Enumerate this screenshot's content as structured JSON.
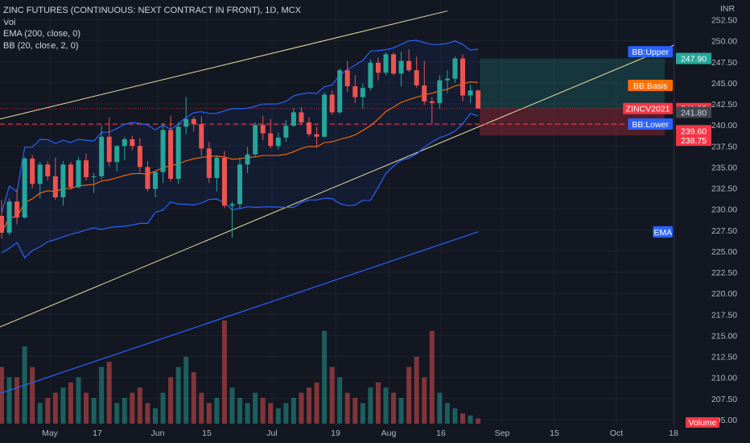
{
  "legend": {
    "symbol": "ZINC FUTURES (CONTINUOUS: NEXT CONTRACT IN FRONT), 1D, MCX",
    "vol": "Vol",
    "ema": "EMA (200, close, 0)",
    "bb": "BB (20, close, 2, 0)"
  },
  "currency": "INR",
  "colors": {
    "background": "#131722",
    "up": "#26a69a",
    "down": "#ef5350",
    "bb_bands": "#2962ff",
    "bb_basis": "#ff6d00",
    "ema": "#2962ff",
    "channel": "#e8dfa0",
    "dashed_level": "#f23645",
    "target_zone": "#26a69a",
    "stop_zone": "#f23645"
  },
  "chart_data": {
    "type": "candlestick",
    "title": "ZINC FUTURES (CONTINUOUS: NEXT CONTRACT IN FRONT), 1D, MCX",
    "ylim": [
      203.5,
      253.5
    ],
    "y_ticks": [
      "252.50",
      "250.00",
      "247.50",
      "245.00",
      "242.50",
      "240.00",
      "237.50",
      "235.00",
      "232.50",
      "230.00",
      "227.50",
      "225.00",
      "222.50",
      "220.00",
      "217.50",
      "215.00",
      "212.50",
      "210.00",
      "207.50",
      "205.00"
    ],
    "x_ticks": [
      "May",
      "17",
      "Jun",
      "15",
      "Jul",
      "19",
      "Aug",
      "16",
      "Sep",
      "15",
      "Oct",
      "18"
    ],
    "price_tags": [
      {
        "label": "INR"
      },
      {
        "label": "BB:Upper",
        "value": 248.7
      },
      {
        "label": "",
        "value": "247.90",
        "kind": "target"
      },
      {
        "label": "BB:Basis",
        "value": 244.7
      },
      {
        "label": "ZINCV2021",
        "value": "241.95",
        "kind": "last"
      },
      {
        "label": "",
        "value": "241.80",
        "kind": "plain"
      },
      {
        "label": "BB:Lower",
        "value": 240.3
      },
      {
        "label": "",
        "value": "239.60",
        "kind": "stop"
      },
      {
        "label": "",
        "value": "238.75",
        "kind": "stop"
      },
      {
        "label": "EMA",
        "value": 227.3
      },
      {
        "label": "Volume",
        "kind": "volume"
      }
    ],
    "dashed_level": 240.1,
    "last_price": 241.95,
    "position": {
      "entry": 241.95,
      "target": 247.9,
      "stop": 238.75
    },
    "candles": [
      {
        "o": 229.2,
        "h": 231.1,
        "l": 226.5,
        "c": 227.2,
        "v": 0.55
      },
      {
        "o": 227.2,
        "h": 231.3,
        "l": 226.9,
        "c": 230.9,
        "v": 0.45
      },
      {
        "o": 230.9,
        "h": 232.4,
        "l": 228.2,
        "c": 229.0,
        "v": 0.45
      },
      {
        "o": 229.0,
        "h": 236.2,
        "l": 228.9,
        "c": 236.0,
        "v": 0.75
      },
      {
        "o": 236.0,
        "h": 236.4,
        "l": 232.5,
        "c": 233.0,
        "v": 0.55
      },
      {
        "o": 233.0,
        "h": 235.6,
        "l": 231.3,
        "c": 235.3,
        "v": 0.2
      },
      {
        "o": 235.3,
        "h": 235.7,
        "l": 233.4,
        "c": 233.9,
        "v": 0.25
      },
      {
        "o": 233.9,
        "h": 236.1,
        "l": 231.1,
        "c": 231.4,
        "v": 0.3
      },
      {
        "o": 231.4,
        "h": 235.7,
        "l": 230.4,
        "c": 235.3,
        "v": 0.35
      },
      {
        "o": 235.3,
        "h": 235.6,
        "l": 232.3,
        "c": 232.6,
        "v": 0.4
      },
      {
        "o": 232.6,
        "h": 236.2,
        "l": 232.5,
        "c": 235.8,
        "v": 0.45
      },
      {
        "o": 235.8,
        "h": 236.6,
        "l": 233.4,
        "c": 233.8,
        "v": 0.3
      },
      {
        "o": 233.8,
        "h": 234.3,
        "l": 231.9,
        "c": 233.9,
        "v": 0.25
      },
      {
        "o": 233.9,
        "h": 239.9,
        "l": 233.5,
        "c": 238.6,
        "v": 0.55
      },
      {
        "o": 238.6,
        "h": 240.9,
        "l": 235.1,
        "c": 235.6,
        "v": 0.6
      },
      {
        "o": 235.6,
        "h": 237.6,
        "l": 234.5,
        "c": 237.5,
        "v": 0.2
      },
      {
        "o": 237.5,
        "h": 238.6,
        "l": 235.8,
        "c": 238.3,
        "v": 0.25
      },
      {
        "o": 238.3,
        "h": 238.7,
        "l": 237.0,
        "c": 237.5,
        "v": 0.3
      },
      {
        "o": 237.5,
        "h": 238.4,
        "l": 234.4,
        "c": 235.0,
        "v": 0.35
      },
      {
        "o": 235.0,
        "h": 235.7,
        "l": 232.1,
        "c": 232.4,
        "v": 0.2
      },
      {
        "o": 232.4,
        "h": 234.5,
        "l": 231.4,
        "c": 234.4,
        "v": 0.15
      },
      {
        "o": 234.4,
        "h": 240.2,
        "l": 233.1,
        "c": 239.4,
        "v": 0.3
      },
      {
        "o": 239.4,
        "h": 241.1,
        "l": 233.3,
        "c": 233.6,
        "v": 0.45
      },
      {
        "o": 233.6,
        "h": 240.3,
        "l": 233.0,
        "c": 239.8,
        "v": 0.55
      },
      {
        "o": 239.8,
        "h": 243.3,
        "l": 238.9,
        "c": 240.7,
        "v": 0.65
      },
      {
        "o": 240.7,
        "h": 241.0,
        "l": 239.2,
        "c": 240.1,
        "v": 0.5
      },
      {
        "o": 240.1,
        "h": 241.0,
        "l": 236.3,
        "c": 237.2,
        "v": 0.3
      },
      {
        "o": 237.2,
        "h": 238.0,
        "l": 233.1,
        "c": 233.7,
        "v": 0.2
      },
      {
        "o": 233.7,
        "h": 236.4,
        "l": 232.1,
        "c": 236.1,
        "v": 0.25
      },
      {
        "o": 236.1,
        "h": 236.9,
        "l": 230.1,
        "c": 230.4,
        "v": 1.0
      },
      {
        "o": 230.4,
        "h": 230.9,
        "l": 226.6,
        "c": 230.6,
        "v": 0.35
      },
      {
        "o": 230.6,
        "h": 236.1,
        "l": 230.1,
        "c": 235.3,
        "v": 0.25
      },
      {
        "o": 235.3,
        "h": 237.4,
        "l": 234.3,
        "c": 236.5,
        "v": 0.2
      },
      {
        "o": 236.5,
        "h": 240.3,
        "l": 236.2,
        "c": 240.0,
        "v": 0.3
      },
      {
        "o": 240.0,
        "h": 241.1,
        "l": 238.2,
        "c": 239.0,
        "v": 0.25
      },
      {
        "o": 239.0,
        "h": 240.7,
        "l": 237.2,
        "c": 237.5,
        "v": 0.2
      },
      {
        "o": 237.5,
        "h": 239.1,
        "l": 237.1,
        "c": 238.5,
        "v": 0.15
      },
      {
        "o": 238.5,
        "h": 240.6,
        "l": 238.0,
        "c": 239.9,
        "v": 0.2
      },
      {
        "o": 239.9,
        "h": 242.0,
        "l": 239.8,
        "c": 241.5,
        "v": 0.25
      },
      {
        "o": 241.5,
        "h": 242.1,
        "l": 240.0,
        "c": 240.3,
        "v": 0.3
      },
      {
        "o": 240.3,
        "h": 240.9,
        "l": 238.6,
        "c": 238.9,
        "v": 0.35
      },
      {
        "o": 238.9,
        "h": 239.8,
        "l": 237.3,
        "c": 238.6,
        "v": 0.4
      },
      {
        "o": 238.6,
        "h": 243.9,
        "l": 238.5,
        "c": 243.6,
        "v": 0.9
      },
      {
        "o": 243.6,
        "h": 244.1,
        "l": 241.2,
        "c": 241.5,
        "v": 0.55
      },
      {
        "o": 241.5,
        "h": 246.7,
        "l": 241.3,
        "c": 246.5,
        "v": 0.45
      },
      {
        "o": 246.5,
        "h": 247.6,
        "l": 243.9,
        "c": 244.6,
        "v": 0.3
      },
      {
        "o": 244.6,
        "h": 245.9,
        "l": 242.6,
        "c": 243.3,
        "v": 0.25
      },
      {
        "o": 243.3,
        "h": 244.9,
        "l": 241.9,
        "c": 244.4,
        "v": 0.2
      },
      {
        "o": 244.4,
        "h": 247.8,
        "l": 244.1,
        "c": 247.4,
        "v": 0.35
      },
      {
        "o": 247.4,
        "h": 248.0,
        "l": 245.3,
        "c": 246.2,
        "v": 0.4
      },
      {
        "o": 246.2,
        "h": 248.6,
        "l": 245.9,
        "c": 248.4,
        "v": 0.35
      },
      {
        "o": 248.4,
        "h": 248.6,
        "l": 245.9,
        "c": 246.1,
        "v": 0.3
      },
      {
        "o": 246.1,
        "h": 248.7,
        "l": 244.6,
        "c": 247.6,
        "v": 0.25
      },
      {
        "o": 247.6,
        "h": 249.0,
        "l": 246.3,
        "c": 246.5,
        "v": 0.55
      },
      {
        "o": 246.5,
        "h": 248.1,
        "l": 244.4,
        "c": 244.7,
        "v": 0.65
      },
      {
        "o": 244.7,
        "h": 247.6,
        "l": 242.4,
        "c": 242.8,
        "v": 0.45
      },
      {
        "o": 242.8,
        "h": 243.3,
        "l": 240.1,
        "c": 242.6,
        "v": 0.9
      },
      {
        "o": 242.6,
        "h": 245.9,
        "l": 241.9,
        "c": 245.3,
        "v": 0.3
      },
      {
        "o": 245.3,
        "h": 246.5,
        "l": 243.8,
        "c": 245.5,
        "v": 0.2
      },
      {
        "o": 245.5,
        "h": 248.1,
        "l": 245.0,
        "c": 247.9,
        "v": 0.15
      },
      {
        "o": 247.9,
        "h": 248.4,
        "l": 242.8,
        "c": 243.5,
        "v": 0.1
      },
      {
        "o": 243.5,
        "h": 244.8,
        "l": 242.6,
        "c": 244.1,
        "v": 0.08
      },
      {
        "o": 244.1,
        "h": 244.2,
        "l": 241.9,
        "c": 241.95,
        "v": 0.05
      }
    ]
  }
}
